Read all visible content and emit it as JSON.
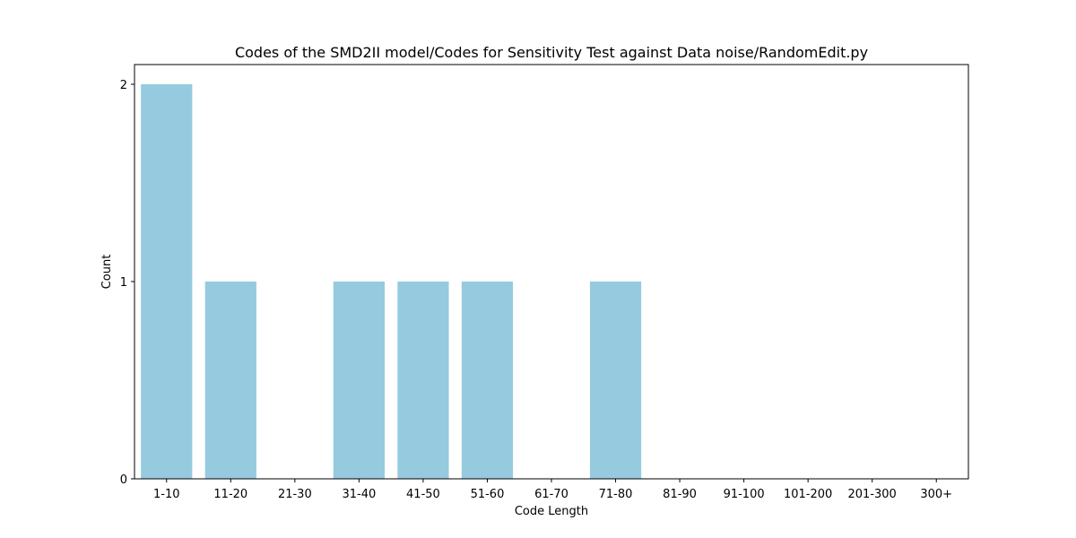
{
  "chart_data": {
    "type": "bar",
    "title": "Codes of the SMD2II model/Codes for Sensitivity Test against Data noise/RandomEdit.py",
    "xlabel": "Code Length",
    "ylabel": "Count",
    "categories": [
      "1-10",
      "11-20",
      "21-30",
      "31-40",
      "41-50",
      "51-60",
      "61-70",
      "71-80",
      "81-90",
      "91-100",
      "101-200",
      "201-300",
      "300+"
    ],
    "values": [
      2,
      1,
      0,
      1,
      1,
      1,
      0,
      1,
      0,
      0,
      0,
      0,
      0
    ],
    "ylim": [
      0,
      2.1
    ],
    "yticks": [
      0,
      1,
      2
    ],
    "grid": false,
    "bar_color": "#96cadf"
  }
}
